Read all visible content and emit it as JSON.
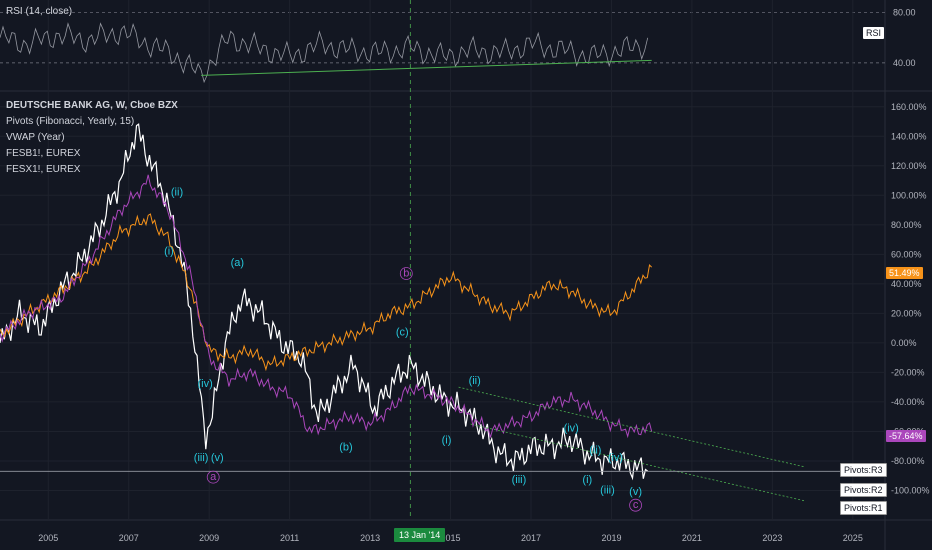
{
  "rsi_panel": {
    "title": "RSI (14, close)",
    "tag": "RSI",
    "levels": [
      "80.00",
      "40.00"
    ]
  },
  "main_panel": {
    "symbol": "DEUTSCHE BANK AG, W, Cboe BZX",
    "studies": [
      "Pivots (Fibonacci, Yearly, 15)",
      "VWAP (Year)",
      "FESB1!, EUREX",
      "FESX1!, EUREX"
    ]
  },
  "crosshair_date": "13 Jan '14",
  "price_tags": [
    {
      "text": "51.49%",
      "color": "#f7931a"
    },
    {
      "text": "-57.64%",
      "color": "#ab47bc"
    }
  ],
  "pivot_labels": [
    "Pivots:R3",
    "Pivots:R2",
    "Pivots:R1"
  ],
  "chart_data": {
    "type": "line",
    "x_ticks": [
      "2005",
      "2007",
      "2009",
      "2011",
      "2013",
      "2015",
      "2017",
      "2019",
      "2021",
      "2023",
      "2025"
    ],
    "y_ticks": [
      "160.00%",
      "140.00%",
      "120.00%",
      "100.00%",
      "80.00%",
      "60.00%",
      "40.00%",
      "20.00%",
      "0.00%",
      "-20.00%",
      "-40.00%",
      "-60.00%",
      "-80.00%",
      "-100.00%"
    ],
    "ylim": [
      -120,
      170
    ],
    "xlim": [
      2003.8,
      2025.8
    ],
    "series": [
      {
        "name": "DEUTSCHE BANK AG",
        "color": "#ffffff",
        "x": [
          2003.8,
          2004.3,
          2004.8,
          2005.3,
          2005.8,
          2006.3,
          2006.8,
          2007.2,
          2007.5,
          2007.9,
          2008.3,
          2008.6,
          2008.9,
          2009.1,
          2009.4,
          2009.8,
          2010.3,
          2010.8,
          2011.3,
          2011.7,
          2012.2,
          2012.6,
          2013.1,
          2013.6,
          2014.0,
          2014.5,
          2014.9,
          2015.3,
          2015.7,
          2016.2,
          2016.6,
          2017.1,
          2017.5,
          2018.0,
          2018.4,
          2018.8,
          2019.2,
          2019.6,
          2019.9
        ],
        "y": [
          0,
          20,
          10,
          35,
          55,
          80,
          110,
          145,
          125,
          100,
          60,
          10,
          -65,
          -45,
          0,
          30,
          20,
          0,
          -10,
          -50,
          -30,
          -15,
          -45,
          -25,
          -15,
          -30,
          -40,
          -45,
          -55,
          -75,
          -80,
          -70,
          -70,
          -65,
          -75,
          -80,
          -80,
          -85,
          -85
        ]
      },
      {
        "name": "FESB1!, EUREX",
        "color": "#f7931a",
        "x": [
          2003.8,
          2004.5,
          2005.3,
          2006.0,
          2006.8,
          2007.5,
          2008.0,
          2008.5,
          2009.0,
          2009.5,
          2010.0,
          2010.5,
          2011.0,
          2011.5,
          2012.0,
          2012.5,
          2013.0,
          2013.5,
          2014.0,
          2014.5,
          2015.0,
          2015.5,
          2016.0,
          2016.5,
          2017.0,
          2017.5,
          2018.0,
          2018.5,
          2019.0,
          2019.5,
          2020.0
        ],
        "y": [
          5,
          20,
          35,
          50,
          75,
          85,
          70,
          40,
          -5,
          -10,
          -5,
          -15,
          -10,
          -5,
          0,
          5,
          10,
          20,
          25,
          35,
          45,
          35,
          25,
          20,
          30,
          40,
          35,
          25,
          20,
          35,
          51.5
        ]
      },
      {
        "name": "FESX1!, EUREX",
        "color": "#ab47bc",
        "x": [
          2003.8,
          2004.5,
          2005.3,
          2006.0,
          2006.8,
          2007.5,
          2008.0,
          2008.5,
          2009.0,
          2009.5,
          2010.0,
          2010.5,
          2011.0,
          2011.5,
          2012.0,
          2012.5,
          2013.0,
          2013.5,
          2014.0,
          2014.5,
          2015.0,
          2015.5,
          2016.0,
          2016.5,
          2017.0,
          2017.5,
          2018.0,
          2018.5,
          2019.0,
          2019.5,
          2020.0
        ],
        "y": [
          5,
          20,
          30,
          55,
          90,
          110,
          90,
          50,
          -10,
          -25,
          -20,
          -30,
          -35,
          -60,
          -55,
          -50,
          -55,
          -45,
          -30,
          -35,
          -40,
          -50,
          -60,
          -55,
          -50,
          -40,
          -38,
          -45,
          -55,
          -60,
          -57.6
        ]
      }
    ],
    "annotations": [
      {
        "text": "(i)",
        "x": 2008.0,
        "y": 60,
        "color": "#26c6da"
      },
      {
        "text": "(ii)",
        "x": 2008.2,
        "y": 100,
        "color": "#26c6da"
      },
      {
        "text": "(iv)",
        "x": 2008.9,
        "y": -30,
        "color": "#26c6da"
      },
      {
        "text": "(iii)",
        "x": 2008.8,
        "y": -80,
        "color": "#26c6da"
      },
      {
        "text": "(v)",
        "x": 2009.2,
        "y": -80,
        "color": "#26c6da"
      },
      {
        "text": "a",
        "x": 2009.1,
        "y": -93,
        "color": "#ab47bc"
      },
      {
        "text": "(a)",
        "x": 2009.7,
        "y": 52,
        "color": "#26c6da"
      },
      {
        "text": "(b)",
        "x": 2012.4,
        "y": -73,
        "color": "#26c6da"
      },
      {
        "text": "b",
        "x": 2013.9,
        "y": 45,
        "color": "#ab47bc"
      },
      {
        "text": "(c)",
        "x": 2013.8,
        "y": 5,
        "color": "#26c6da"
      },
      {
        "text": "(i)",
        "x": 2014.9,
        "y": -68,
        "color": "#26c6da"
      },
      {
        "text": "(ii)",
        "x": 2015.6,
        "y": -28,
        "color": "#26c6da"
      },
      {
        "text": "(iii)",
        "x": 2016.7,
        "y": -95,
        "color": "#26c6da"
      },
      {
        "text": "(iv)",
        "x": 2018.0,
        "y": -60,
        "color": "#26c6da"
      },
      {
        "text": "(ii)",
        "x": 2018.6,
        "y": -75,
        "color": "#26c6da"
      },
      {
        "text": "(iv)",
        "x": 2019.1,
        "y": -80,
        "color": "#26c6da"
      },
      {
        "text": "(i)",
        "x": 2018.4,
        "y": -95,
        "color": "#26c6da"
      },
      {
        "text": "(iii)",
        "x": 2018.9,
        "y": -102,
        "color": "#26c6da"
      },
      {
        "text": "(v)",
        "x": 2019.6,
        "y": -103,
        "color": "#26c6da"
      },
      {
        "text": "c",
        "x": 2019.6,
        "y": -112,
        "color": "#ab47bc"
      }
    ],
    "trend_lines": [
      {
        "x": [
          2015.2,
          2023.8
        ],
        "y": [
          -30,
          -84
        ],
        "color": "#4caf50"
      },
      {
        "x": [
          2015.5,
          2023.8
        ],
        "y": [
          -55,
          -107
        ],
        "color": "#4caf50"
      }
    ]
  },
  "rsi_data": {
    "x": [
      2003.8,
      2004.5,
      2005.2,
      2006.0,
      2006.8,
      2007.5,
      2008.2,
      2008.8,
      2009.5,
      2010.2,
      2011.0,
      2011.8,
      2012.5,
      2013.2,
      2014.0,
      2014.8,
      2015.5,
      2016.3,
      2017.0,
      2017.8,
      2018.5,
      2019.2,
      2019.9
    ],
    "y": [
      60,
      55,
      62,
      58,
      65,
      55,
      45,
      30,
      60,
      52,
      45,
      55,
      50,
      48,
      52,
      45,
      50,
      48,
      55,
      50,
      45,
      50,
      55
    ],
    "ylim": [
      20,
      90
    ],
    "trend": {
      "x": [
        2008.8,
        2020.0
      ],
      "y": [
        30,
        42
      ]
    }
  }
}
